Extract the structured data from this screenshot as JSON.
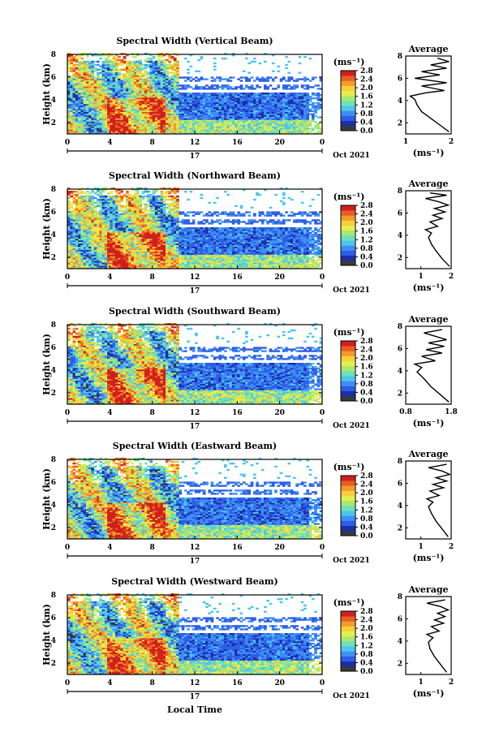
{
  "figure": {
    "xlabel": "Local Time",
    "date_label": "Oct 2021",
    "day_label": "17",
    "colorbar_unit": "(ms⁻¹)",
    "colorbar_ticks": [
      "0.0",
      "0.4",
      "0.8",
      "1.2",
      "1.6",
      "2.0",
      "2.4",
      "2.8"
    ],
    "colorbar_colors": [
      "#3a3a3a",
      "#1a2fa8",
      "#2f5ee6",
      "#3f8ff5",
      "#4ec5ee",
      "#6fe0b8",
      "#a8e870",
      "#e4ee4e",
      "#f7cf3a",
      "#f49a2b",
      "#e85e22",
      "#cf1f1f"
    ],
    "avg_title": "Average",
    "avg_xlabel": "(ms⁻¹)"
  },
  "chart_data": [
    {
      "type": "heatmap",
      "title": "Spectral Width (Vertical Beam)",
      "ylabel": "Height (km)",
      "xlabel": "Local Time",
      "x_ticks": [
        "0",
        "4",
        "8",
        "12",
        "16",
        "20",
        "0"
      ],
      "xlim": [
        0,
        24
      ],
      "y_ticks": [
        "2",
        "4",
        "6",
        "8"
      ],
      "ylim": [
        1,
        8
      ],
      "colorbar_range": [
        0,
        2.8
      ],
      "average_profile": {
        "x_ticks": [
          "1",
          "2"
        ],
        "xlim": [
          1,
          2
        ],
        "ylim": [
          1,
          8
        ],
        "y_ticks": [
          "2",
          "4",
          "6",
          "8"
        ],
        "points": [
          [
            1.95,
            1.2
          ],
          [
            1.75,
            1.8
          ],
          [
            1.55,
            2.4
          ],
          [
            1.35,
            3.0
          ],
          [
            1.25,
            3.6
          ],
          [
            1.2,
            4.1
          ],
          [
            1.1,
            4.4
          ],
          [
            1.45,
            4.7
          ],
          [
            1.85,
            4.9
          ],
          [
            1.35,
            5.3
          ],
          [
            1.9,
            5.6
          ],
          [
            1.2,
            6.0
          ],
          [
            1.75,
            6.3
          ],
          [
            1.35,
            6.6
          ],
          [
            1.9,
            6.9
          ],
          [
            1.55,
            7.2
          ],
          [
            1.95,
            7.5
          ],
          [
            1.7,
            7.8
          ]
        ]
      }
    },
    {
      "type": "heatmap",
      "title": "Spectral Width (Northward Beam)",
      "ylabel": "Height (km)",
      "xlabel": "Local Time",
      "x_ticks": [
        "0",
        "4",
        "8",
        "12",
        "16",
        "20",
        "0"
      ],
      "xlim": [
        0,
        24
      ],
      "y_ticks": [
        "2",
        "4",
        "6",
        "8"
      ],
      "ylim": [
        1,
        8
      ],
      "colorbar_range": [
        0,
        2.8
      ],
      "average_profile": {
        "x_ticks": [
          "1",
          "2"
        ],
        "xlim": [
          0.5,
          2
        ],
        "ylim": [
          1,
          8
        ],
        "y_ticks": [
          "2",
          "4",
          "6",
          "8"
        ],
        "points": [
          [
            1.95,
            1.2
          ],
          [
            1.7,
            1.9
          ],
          [
            1.5,
            2.6
          ],
          [
            1.35,
            3.2
          ],
          [
            1.25,
            3.8
          ],
          [
            1.35,
            4.2
          ],
          [
            1.15,
            4.5
          ],
          [
            1.55,
            4.8
          ],
          [
            1.3,
            5.2
          ],
          [
            1.7,
            5.5
          ],
          [
            1.4,
            5.8
          ],
          [
            1.8,
            6.1
          ],
          [
            1.45,
            6.4
          ],
          [
            1.9,
            6.7
          ],
          [
            1.6,
            7.0
          ],
          [
            1.15,
            7.3
          ],
          [
            1.85,
            7.6
          ],
          [
            1.3,
            7.8
          ]
        ]
      }
    },
    {
      "type": "heatmap",
      "title": "Spectral Width (Southward Beam)",
      "ylabel": "Height (km)",
      "xlabel": "Local Time",
      "x_ticks": [
        "0",
        "4",
        "8",
        "12",
        "16",
        "20",
        "0"
      ],
      "xlim": [
        0,
        24
      ],
      "y_ticks": [
        "2",
        "4",
        "6",
        "8"
      ],
      "ylim": [
        1,
        8
      ],
      "colorbar_range": [
        0,
        2.8
      ],
      "average_profile": {
        "x_ticks": [
          "0.8",
          "1.8"
        ],
        "xlim": [
          0.8,
          1.8
        ],
        "ylim": [
          1,
          8
        ],
        "y_ticks": [
          "2",
          "4",
          "6",
          "8"
        ],
        "points": [
          [
            1.75,
            1.2
          ],
          [
            1.55,
            1.9
          ],
          [
            1.35,
            2.6
          ],
          [
            1.2,
            3.3
          ],
          [
            1.05,
            3.9
          ],
          [
            1.15,
            4.3
          ],
          [
            1.0,
            4.6
          ],
          [
            1.45,
            4.9
          ],
          [
            1.15,
            5.3
          ],
          [
            1.6,
            5.6
          ],
          [
            1.25,
            5.9
          ],
          [
            1.65,
            6.2
          ],
          [
            1.3,
            6.5
          ],
          [
            1.7,
            6.8
          ],
          [
            1.45,
            7.1
          ],
          [
            1.2,
            7.4
          ],
          [
            1.6,
            7.7
          ]
        ]
      }
    },
    {
      "type": "heatmap",
      "title": "Spectral Width (Eastward Beam)",
      "ylabel": "Height (km)",
      "xlabel": "Local Time",
      "x_ticks": [
        "0",
        "4",
        "8",
        "12",
        "16",
        "20",
        "0"
      ],
      "xlim": [
        0,
        24
      ],
      "y_ticks": [
        "2",
        "4",
        "6",
        "8"
      ],
      "ylim": [
        1,
        8
      ],
      "colorbar_range": [
        0,
        2.8
      ],
      "average_profile": {
        "x_ticks": [
          "1",
          "2"
        ],
        "xlim": [
          0.5,
          2
        ],
        "ylim": [
          1,
          8
        ],
        "y_ticks": [
          "2",
          "4",
          "6",
          "8"
        ],
        "points": [
          [
            1.9,
            1.2
          ],
          [
            1.7,
            1.9
          ],
          [
            1.5,
            2.6
          ],
          [
            1.35,
            3.3
          ],
          [
            1.25,
            3.9
          ],
          [
            1.4,
            4.3
          ],
          [
            1.2,
            4.6
          ],
          [
            1.6,
            4.9
          ],
          [
            1.3,
            5.3
          ],
          [
            1.75,
            5.6
          ],
          [
            1.4,
            5.9
          ],
          [
            1.85,
            6.2
          ],
          [
            1.5,
            6.5
          ],
          [
            1.95,
            6.8
          ],
          [
            1.7,
            7.1
          ],
          [
            1.25,
            7.4
          ],
          [
            1.85,
            7.7
          ]
        ]
      }
    },
    {
      "type": "heatmap",
      "title": "Spectral Width (Westward Beam)",
      "ylabel": "Height (km)",
      "xlabel": "Local Time",
      "x_ticks": [
        "0",
        "4",
        "8",
        "12",
        "16",
        "20",
        "0"
      ],
      "xlim": [
        0,
        24
      ],
      "y_ticks": [
        "2",
        "4",
        "6",
        "8"
      ],
      "ylim": [
        1,
        8
      ],
      "colorbar_range": [
        0,
        2.8
      ],
      "average_profile": {
        "x_ticks": [
          "1",
          "2"
        ],
        "xlim": [
          0.5,
          2
        ],
        "ylim": [
          1,
          8
        ],
        "y_ticks": [
          "2",
          "4",
          "6",
          "8"
        ],
        "points": [
          [
            1.85,
            1.2
          ],
          [
            1.65,
            1.9
          ],
          [
            1.45,
            2.6
          ],
          [
            1.3,
            3.3
          ],
          [
            1.25,
            3.9
          ],
          [
            1.4,
            4.3
          ],
          [
            1.2,
            4.6
          ],
          [
            1.6,
            4.9
          ],
          [
            1.35,
            5.3
          ],
          [
            1.75,
            5.6
          ],
          [
            1.45,
            5.9
          ],
          [
            1.8,
            6.2
          ],
          [
            1.55,
            6.5
          ],
          [
            1.9,
            6.8
          ],
          [
            1.65,
            7.1
          ],
          [
            1.2,
            7.4
          ],
          [
            1.8,
            7.7
          ]
        ]
      }
    }
  ]
}
